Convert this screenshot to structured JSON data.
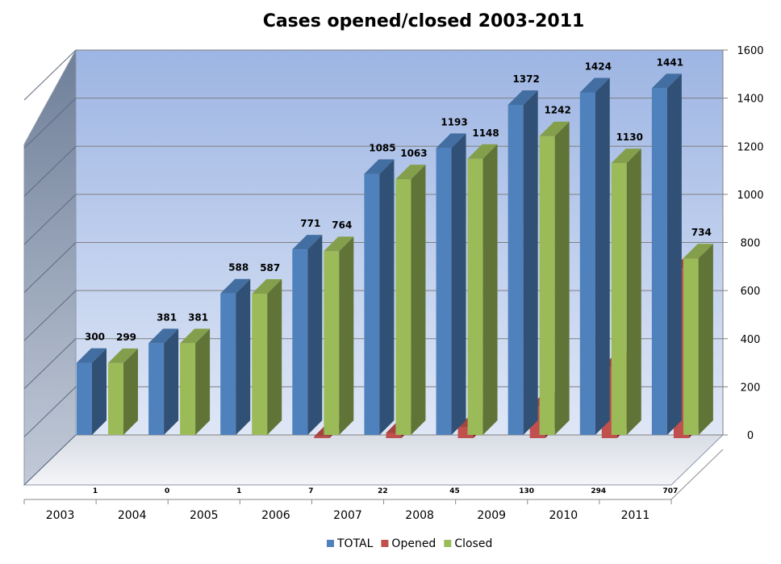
{
  "chart_data": {
    "type": "bar",
    "title": "Cases opened/closed 2003-2011",
    "categories": [
      "2003",
      "2004",
      "2005",
      "2006",
      "2007",
      "2008",
      "2009",
      "2010",
      "2011"
    ],
    "series": [
      {
        "name": "TOTAL",
        "values": [
          300,
          381,
          588,
          771,
          1085,
          1193,
          1372,
          1424,
          1441
        ],
        "color": "#4F81BD"
      },
      {
        "name": "Opened",
        "values": [
          1,
          0,
          1,
          7,
          22,
          45,
          130,
          294,
          707
        ],
        "color": "#C0504D"
      },
      {
        "name": "Closed",
        "values": [
          299,
          381,
          587,
          764,
          1063,
          1148,
          1242,
          1130,
          734
        ],
        "color": "#9BBB59"
      }
    ],
    "yticks": [
      0,
      200,
      400,
      600,
      800,
      1000,
      1200,
      1400,
      1600
    ],
    "ylim": [
      0,
      1600
    ],
    "xlabel": "",
    "ylabel": "",
    "grid": true,
    "legend": "bottom",
    "style": "3d-clustered-column"
  }
}
